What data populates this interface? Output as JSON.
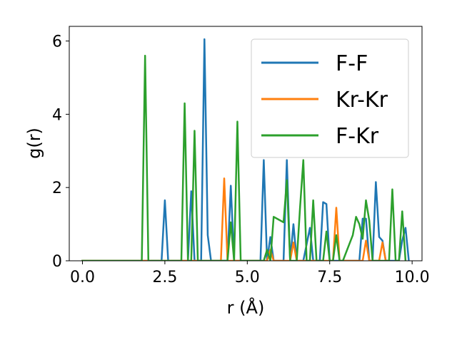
{
  "chart_data": {
    "type": "line",
    "title": "",
    "xlabel": "r (Å)",
    "ylabel": "g(r)",
    "xlim": [
      -0.4,
      10.3
    ],
    "ylim": [
      0,
      6.4
    ],
    "xticks": [
      0.0,
      2.5,
      5.0,
      7.5,
      10.0
    ],
    "xtick_labels": [
      "0.0",
      "2.5",
      "5.0",
      "7.5",
      "10.0"
    ],
    "yticks": [
      0,
      2,
      4,
      6
    ],
    "ytick_labels": [
      "0",
      "2",
      "4",
      "6"
    ],
    "grid": false,
    "legend_position": "top-right",
    "series": [
      {
        "name": "F-F",
        "color": "#1f77b4",
        "x": [
          0.0,
          2.4,
          2.5,
          2.6,
          3.2,
          3.3,
          3.4,
          3.6,
          3.7,
          3.8,
          3.9,
          4.4,
          4.5,
          4.6,
          5.4,
          5.5,
          5.6,
          5.7,
          5.8,
          6.1,
          6.2,
          6.3,
          6.4,
          6.5,
          6.7,
          6.8,
          6.9,
          7.0,
          7.2,
          7.3,
          7.4,
          7.5,
          8.4,
          8.5,
          8.6,
          8.7,
          8.8,
          8.9,
          9.0,
          9.1,
          9.2,
          9.6,
          9.7,
          9.8,
          9.9
        ],
        "y": [
          0,
          0,
          1.65,
          0,
          0,
          1.9,
          0,
          0,
          6.05,
          0.7,
          0,
          0,
          2.05,
          0,
          0,
          2.75,
          0,
          0.65,
          0,
          0,
          2.75,
          0,
          1.0,
          0,
          0,
          0.45,
          0.9,
          0,
          0,
          1.6,
          1.55,
          0,
          0,
          1.15,
          1.15,
          0,
          0,
          2.15,
          0.65,
          0.55,
          0,
          0,
          0.55,
          0.9,
          0
        ]
      },
      {
        "name": "Kr-Kr",
        "color": "#ff7f0e",
        "x": [
          0.0,
          4.2,
          4.3,
          4.4,
          5.6,
          5.7,
          5.8,
          6.3,
          6.4,
          6.5,
          7.6,
          7.7,
          7.8,
          8.5,
          8.6,
          8.7,
          9.0,
          9.1,
          9.2
        ],
        "y": [
          0,
          0,
          2.25,
          0,
          0,
          0.3,
          0,
          0,
          0.5,
          0,
          0,
          1.45,
          0,
          0,
          0.55,
          0,
          0,
          0.5,
          0
        ]
      },
      {
        "name": "F-Kr",
        "color": "#2ca02c",
        "x": [
          0.0,
          1.8,
          1.9,
          2.0,
          3.0,
          3.1,
          3.2,
          3.3,
          3.4,
          3.5,
          4.4,
          4.5,
          4.6,
          4.7,
          4.8,
          5.5,
          5.6,
          5.7,
          5.8,
          5.9,
          6.1,
          6.2,
          6.3,
          6.5,
          6.6,
          6.7,
          6.8,
          6.9,
          7.0,
          7.1,
          7.3,
          7.4,
          7.5,
          7.6,
          7.7,
          7.8,
          7.9,
          8.2,
          8.3,
          8.4,
          8.5,
          8.6,
          8.7,
          8.8,
          9.3,
          9.4,
          9.5,
          9.6,
          9.7,
          9.8
        ],
        "y": [
          0,
          0,
          5.6,
          0,
          0,
          4.3,
          0,
          0,
          3.55,
          0,
          0,
          1.05,
          0,
          3.8,
          0,
          0,
          0.3,
          0,
          1.2,
          1.15,
          1.05,
          2.2,
          0,
          0,
          1.45,
          2.75,
          0,
          0,
          1.65,
          0,
          0,
          0.8,
          0,
          0,
          0.7,
          0,
          0,
          0.7,
          1.2,
          1.0,
          0.6,
          1.65,
          1.1,
          0,
          0,
          1.95,
          0,
          0,
          1.35,
          0
        ]
      }
    ]
  }
}
